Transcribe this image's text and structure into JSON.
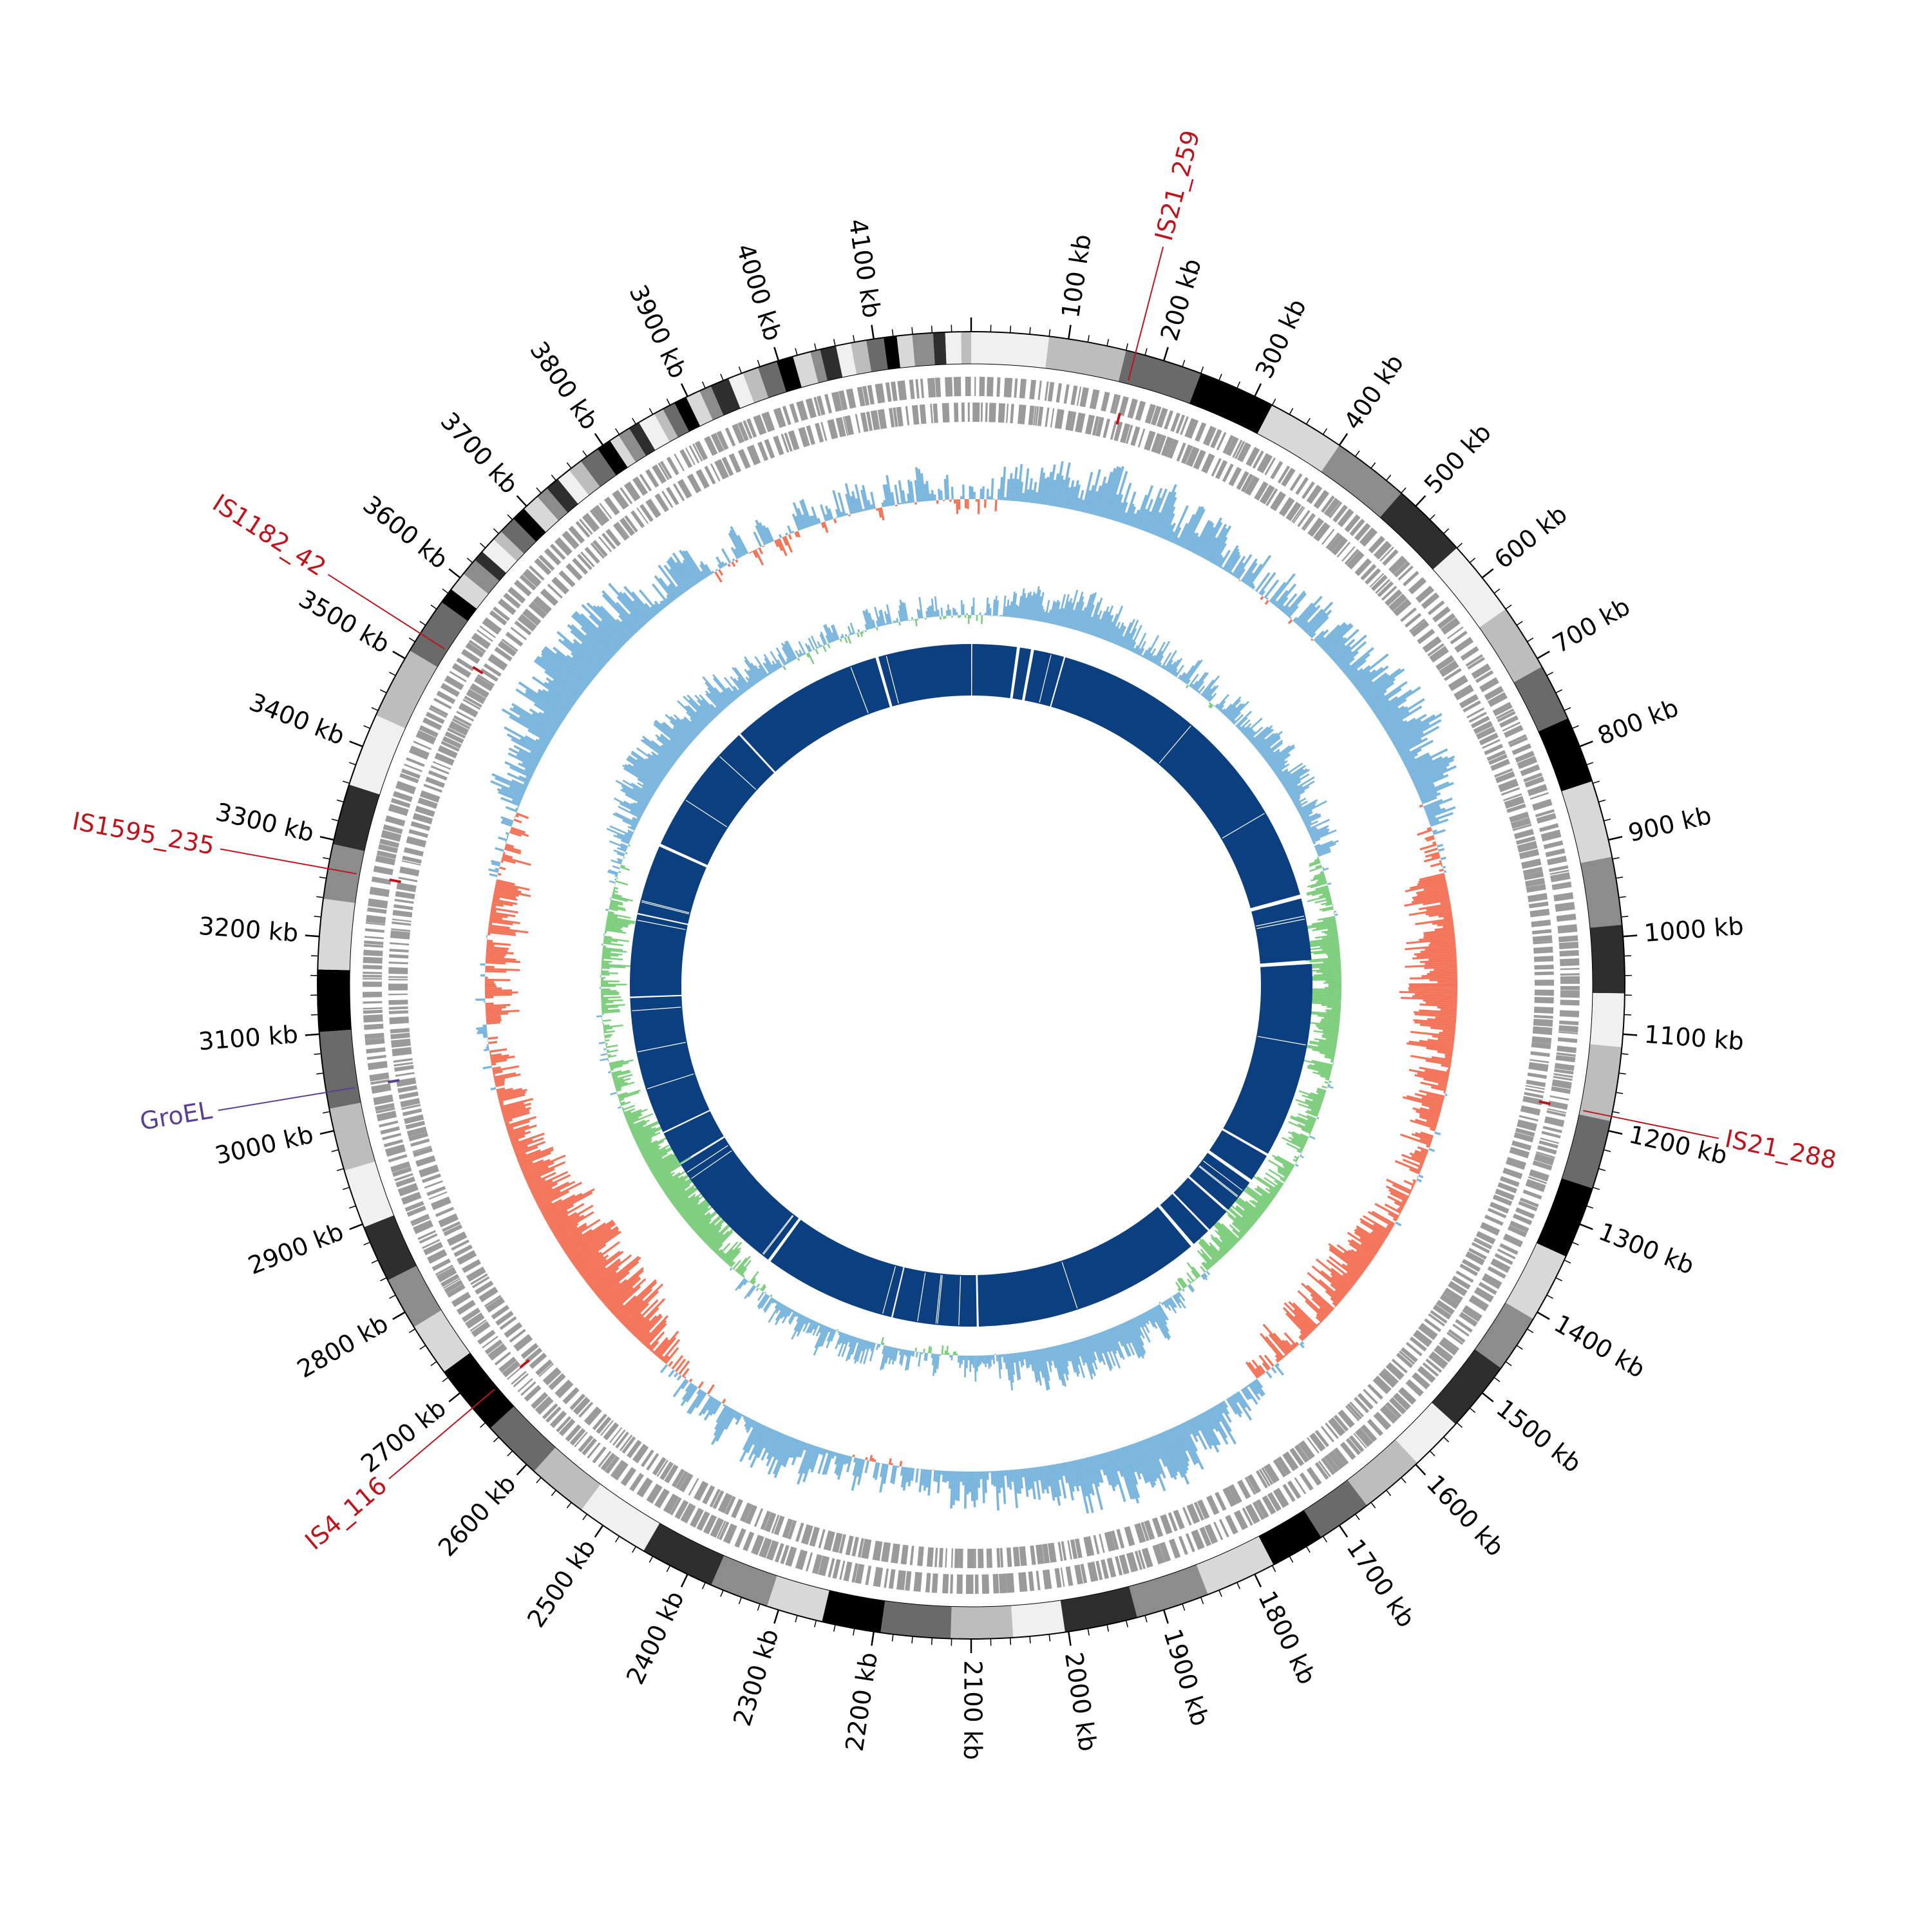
{
  "genome": {
    "length_kb": 4200,
    "tick_labels": [
      "100 kb",
      "200 kb",
      "300 kb",
      "400 kb",
      "500 kb",
      "600 kb",
      "700 kb",
      "800 kb",
      "900 kb",
      "1000 kb",
      "1100 kb",
      "1200 kb",
      "1300 kb",
      "1400 kb",
      "1500 kb",
      "1600 kb",
      "1700 kb",
      "1800 kb",
      "1900 kb",
      "2000 kb",
      "2100 kb",
      "2200 kb",
      "2300 kb",
      "2400 kb",
      "2500 kb",
      "2600 kb",
      "2700 kb",
      "2800 kb",
      "2900 kb",
      "3000 kb",
      "3100 kb",
      "3200 kb",
      "3300 kb",
      "3400 kb",
      "3500 kb",
      "3600 kb",
      "3700 kb",
      "3800 kb",
      "3900 kb",
      "4000 kb",
      "4100 kb"
    ]
  },
  "features": [
    {
      "label": "IS21_259",
      "position_kb": 170,
      "color": "#c0141c"
    },
    {
      "label": "IS21_288",
      "position_kb": 1185,
      "color": "#c0141c"
    },
    {
      "label": "IS4_116",
      "position_kb": 2680,
      "color": "#c0141c"
    },
    {
      "label": "IS1595_235",
      "position_kb": 3270,
      "color": "#c0141c"
    },
    {
      "label": "IS1182_42",
      "position_kb": 3530,
      "color": "#c0141c"
    },
    {
      "label": "GroEL",
      "position_kb": 3040,
      "color": "#5b3f96"
    }
  ],
  "colors": {
    "gc_skew_positive": "#7ab5dd",
    "gc_skew_negative": "#f4745a",
    "gc_content_positive": "#7ab5dd",
    "gc_content_negative": "#7ccd7c",
    "blast_ring": "#0b3f80",
    "gene_ring": "#9a9a9a"
  }
}
